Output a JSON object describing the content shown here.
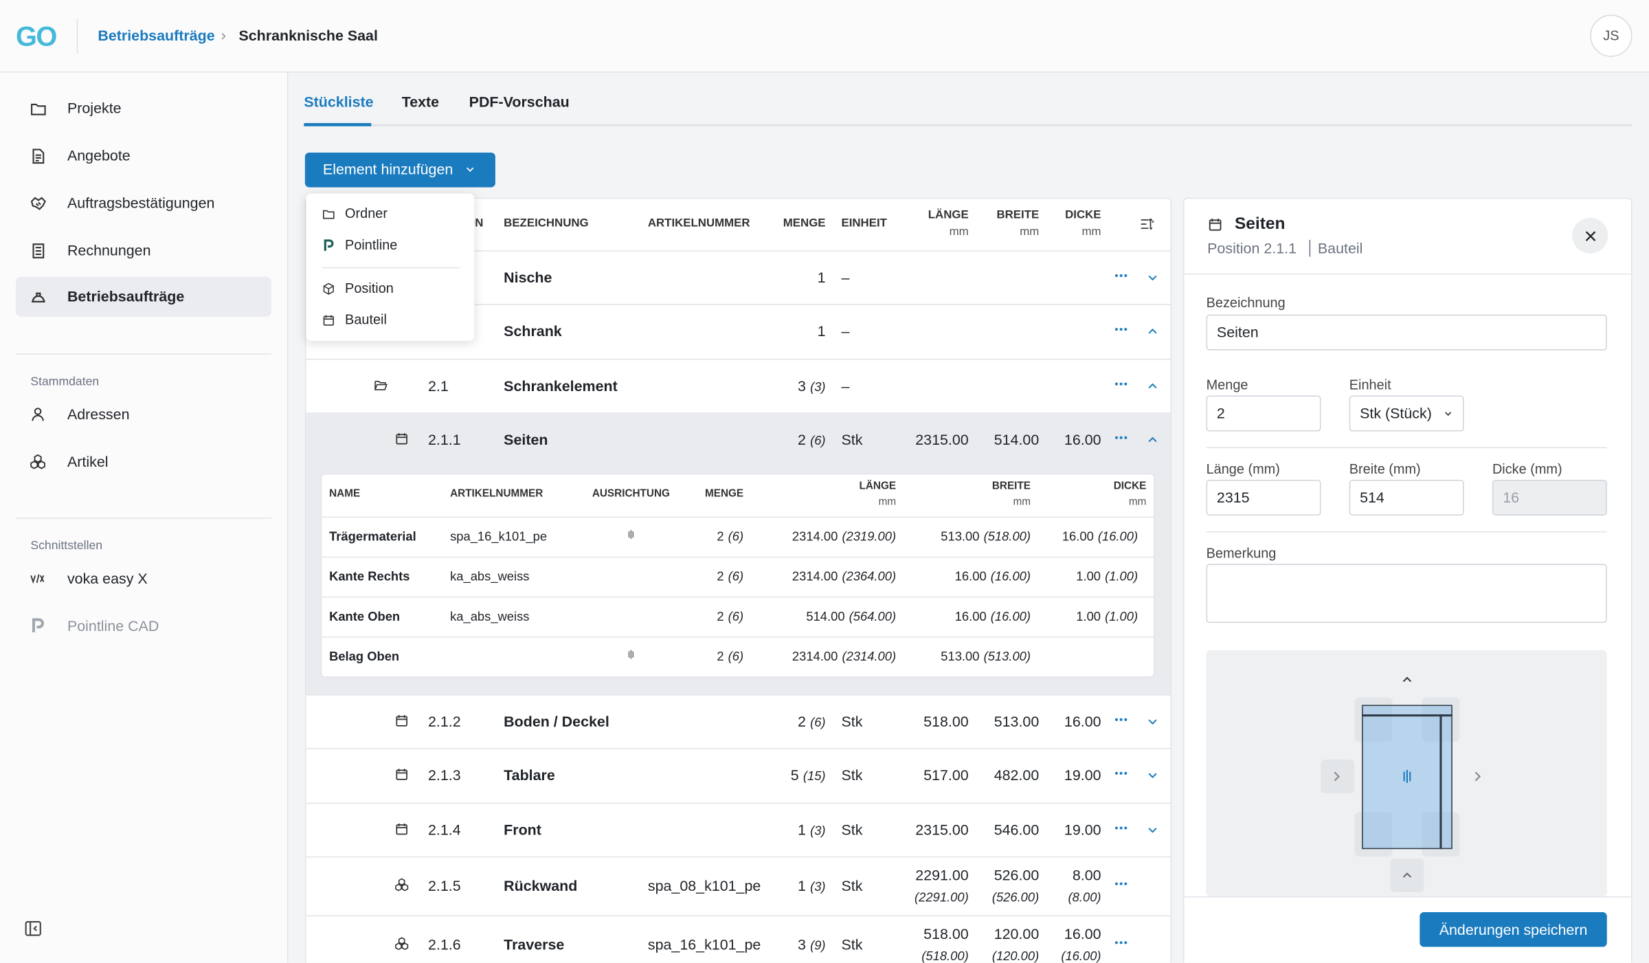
{
  "header": {
    "logo": "GO",
    "breadcrumb": [
      "Betriebsaufträge",
      "Schranknische Saal"
    ],
    "avatar": "JS"
  },
  "sidebar": {
    "nav": [
      "Projekte",
      "Angebote",
      "Auftragsbestätigungen",
      "Rechnungen",
      "Betriebsaufträge"
    ],
    "active": 4,
    "sections": [
      {
        "title": "Stammdaten",
        "items": [
          "Adressen",
          "Artikel"
        ]
      },
      {
        "title": "Schnittstellen",
        "items": [
          "voka easy X",
          "Pointline CAD"
        ]
      }
    ]
  },
  "tabs": [
    "Stückliste",
    "Texte",
    "PDF-Vorschau"
  ],
  "active_tab": 0,
  "add_button": "Element hinzufügen",
  "dropdown": [
    "Ordner",
    "Pointline",
    "Position",
    "Bauteil"
  ],
  "table": {
    "columns": {
      "position": "POSITION",
      "name": "BEZEICHNUNG",
      "article": "ARTIKELNUMMER",
      "quantity": "MENGE",
      "unit": "EINHEIT",
      "length": {
        "label": "LÄNGE",
        "unit": "mm"
      },
      "width": {
        "label": "BREITE",
        "unit": "mm"
      },
      "thickness": {
        "label": "DICKE",
        "unit": "mm"
      }
    },
    "rows": [
      {
        "name": "Nische",
        "quantity": "1",
        "unit": "–",
        "expanded": false
      },
      {
        "name": "Schrank",
        "quantity": "1",
        "unit": "–",
        "expanded": true
      },
      {
        "position": "2.1",
        "name": "Schrankelement",
        "quantity": "3",
        "quantity_total": "(3)",
        "unit": "–",
        "expanded": true
      },
      {
        "position": "2.1.1",
        "name": "Seiten",
        "quantity": "2",
        "quantity_total": "(6)",
        "unit": "Stk",
        "length": "2315.00",
        "width": "514.00",
        "thickness": "16.00",
        "expanded": true,
        "selected": true
      },
      {
        "position": "2.1.2",
        "name": "Boden / Deckel",
        "quantity": "2",
        "quantity_total": "(6)",
        "unit": "Stk",
        "length": "518.00",
        "width": "513.00",
        "thickness": "16.00",
        "expanded": false
      },
      {
        "position": "2.1.3",
        "name": "Tablare",
        "quantity": "5",
        "quantity_total": "(15)",
        "unit": "Stk",
        "length": "517.00",
        "width": "482.00",
        "thickness": "19.00",
        "expanded": false
      },
      {
        "position": "2.1.4",
        "name": "Front",
        "quantity": "1",
        "quantity_total": "(3)",
        "unit": "Stk",
        "length": "2315.00",
        "width": "546.00",
        "thickness": "19.00",
        "expanded": false
      },
      {
        "position": "2.1.5",
        "name": "Rückwand",
        "article": "spa_08_k101_pe",
        "quantity": "1",
        "quantity_total": "(3)",
        "unit": "Stk",
        "length": "2291.00",
        "length_total": "(2291.00)",
        "width": "526.00",
        "width_total": "(526.00)",
        "thickness": "8.00",
        "thickness_total": "(8.00)"
      },
      {
        "position": "2.1.6",
        "name": "Traverse",
        "article": "spa_16_k101_pe",
        "quantity": "3",
        "quantity_total": "(9)",
        "unit": "Stk",
        "length": "518.00",
        "length_total": "(518.00)",
        "width": "120.00",
        "width_total": "(120.00)",
        "thickness": "16.00",
        "thickness_total": "(16.00)"
      }
    ]
  },
  "subtable": {
    "columns": {
      "name": "NAME",
      "article": "ARTIKELNUMMER",
      "grain": "AUSRICHTUNG",
      "quantity": "MENGE",
      "length": {
        "label": "LÄNGE",
        "unit": "mm"
      },
      "width": {
        "label": "BREITE",
        "unit": "mm"
      },
      "thickness": {
        "label": "DICKE",
        "unit": "mm"
      }
    },
    "rows": [
      {
        "name": "Trägermaterial",
        "article": "spa_16_k101_pe",
        "grain": true,
        "quantity": "2",
        "quantity_total": "(6)",
        "length": "2314.00",
        "length_total": "(2319.00)",
        "width": "513.00",
        "width_total": "(518.00)",
        "thickness": "16.00",
        "thickness_total": "(16.00)"
      },
      {
        "name": "Kante Rechts",
        "article": "ka_abs_weiss",
        "quantity": "2",
        "quantity_total": "(6)",
        "length": "2314.00",
        "length_total": "(2364.00)",
        "width": "16.00",
        "width_total": "(16.00)",
        "thickness": "1.00",
        "thickness_total": "(1.00)"
      },
      {
        "name": "Kante Oben",
        "article": "ka_abs_weiss",
        "quantity": "2",
        "quantity_total": "(6)",
        "length": "514.00",
        "length_total": "(564.00)",
        "width": "16.00",
        "width_total": "(16.00)",
        "thickness": "1.00",
        "thickness_total": "(1.00)"
      },
      {
        "name": "Belag Oben",
        "grain": true,
        "quantity": "2",
        "quantity_total": "(6)",
        "length": "2314.00",
        "length_total": "(2314.00)",
        "width": "513.00",
        "width_total": "(513.00)"
      }
    ]
  },
  "panel": {
    "title": "Seiten",
    "subtitle": "Position 2.1.1",
    "type": "Bauteil",
    "fields": {
      "name": {
        "label": "Bezeichnung",
        "value": "Seiten"
      },
      "quantity": {
        "label": "Menge",
        "value": "2"
      },
      "unit": {
        "label": "Einheit",
        "value": "Stk (Stück)"
      },
      "length": {
        "label": "Länge (mm)",
        "value": "2315"
      },
      "width": {
        "label": "Breite (mm)",
        "value": "514"
      },
      "thickness": {
        "label": "Dicke (mm)",
        "value": "16",
        "disabled": true
      },
      "remark": {
        "label": "Bemerkung"
      }
    },
    "save_button": "Änderungen speichern"
  }
}
